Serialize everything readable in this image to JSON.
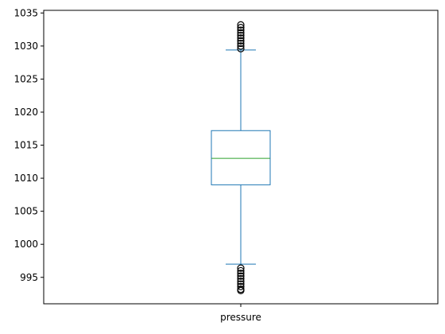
{
  "chart_data": {
    "type": "box",
    "categories": [
      "pressure"
    ],
    "series": [
      {
        "name": "pressure",
        "whisker_low": 997.0,
        "q1": 1009.0,
        "median": 1013.0,
        "q3": 1017.2,
        "whisker_high": 1029.4,
        "outliers_low": [
          993.0,
          993.2,
          993.6,
          994.0,
          994.4,
          994.8,
          995.2,
          995.6,
          996.0,
          996.4
        ],
        "outliers_high": [
          1029.6,
          1030.0,
          1030.4,
          1030.8,
          1031.2,
          1031.6,
          1032.0,
          1032.4,
          1032.8,
          1033.2
        ]
      }
    ],
    "yticks": [
      995,
      1000,
      1005,
      1010,
      1015,
      1020,
      1025,
      1030,
      1035
    ],
    "ylim": [
      991.0,
      1035.4
    ],
    "grid": false,
    "colors": {
      "box": "#1f77b4",
      "median": "#2ca02c",
      "outlier": "#000000",
      "axis": "#000000"
    }
  }
}
